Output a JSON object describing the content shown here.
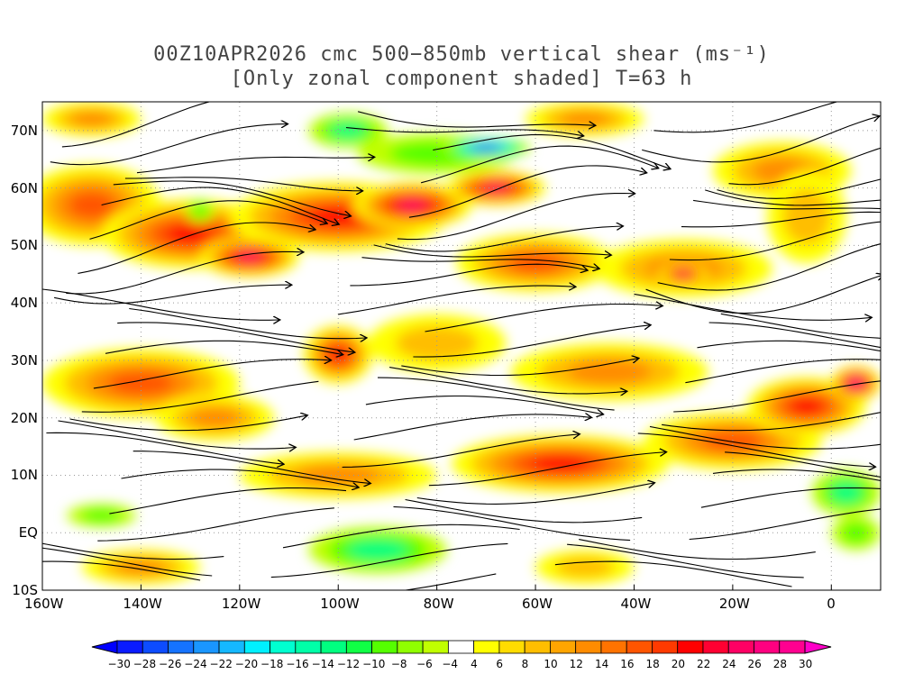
{
  "title": {
    "line1": "00Z10APR2026 cmc 500−850mb vertical shear (ms⁻¹)",
    "line2": "[Only zonal component shaded] T=63 h"
  },
  "axes": {
    "lon_labels": [
      {
        "lon": -160,
        "text": "160W"
      },
      {
        "lon": -140,
        "text": "140W"
      },
      {
        "lon": -120,
        "text": "120W"
      },
      {
        "lon": -100,
        "text": "100W"
      },
      {
        "lon": -80,
        "text": "80W"
      },
      {
        "lon": -60,
        "text": "60W"
      },
      {
        "lon": -40,
        "text": "40W"
      },
      {
        "lon": -20,
        "text": "20W"
      },
      {
        "lon": 0,
        "text": "0"
      }
    ],
    "lat_labels": [
      {
        "lat": 70,
        "text": "70N"
      },
      {
        "lat": 60,
        "text": "60N"
      },
      {
        "lat": 50,
        "text": "50N"
      },
      {
        "lat": 40,
        "text": "40N"
      },
      {
        "lat": 30,
        "text": "30N"
      },
      {
        "lat": 20,
        "text": "20N"
      },
      {
        "lat": 10,
        "text": "10N"
      },
      {
        "lat": 0,
        "text": "EQ"
      },
      {
        "lat": -10,
        "text": "10S"
      }
    ],
    "lon_range": [
      -160,
      10
    ],
    "lat_range": [
      -10,
      75
    ]
  },
  "colorbar": {
    "labels": [
      "−30",
      "−28",
      "−26",
      "−24",
      "−22",
      "−20",
      "−18",
      "−16",
      "−14",
      "−12",
      "−10",
      "−8",
      "−6",
      "−4",
      "4",
      "6",
      "8",
      "10",
      "12",
      "14",
      "16",
      "18",
      "20",
      "22",
      "24",
      "26",
      "28",
      "30"
    ],
    "colors": [
      "#0a1bff",
      "#0d4cff",
      "#1573ff",
      "#1a96ff",
      "#15b8ff",
      "#00f0ff",
      "#00ffd0",
      "#00ffa8",
      "#00ff80",
      "#10ff45",
      "#55ff00",
      "#90ff00",
      "#c0ff00",
      "#ffffff",
      "#ffff00",
      "#ffdc00",
      "#ffbe00",
      "#ffa500",
      "#ff8c00",
      "#ff7300",
      "#ff5500",
      "#ff3a00",
      "#ff0000",
      "#ff0032",
      "#ff0064",
      "#ff0080",
      "#ff0090"
    ],
    "under_color": "#0000ff",
    "over_color": "#ff00c8"
  },
  "shading": [
    {
      "lon": -150,
      "lat": 57,
      "rx": 14,
      "ry": 7,
      "v": 16
    },
    {
      "lon": -130,
      "lat": 52,
      "rx": 18,
      "ry": 6,
      "v": 20
    },
    {
      "lon": -118,
      "lat": 48,
      "rx": 10,
      "ry": 3.5,
      "v": 26
    },
    {
      "lon": -100,
      "lat": 55,
      "rx": 22,
      "ry": 6,
      "v": 22
    },
    {
      "lon": -85,
      "lat": 57,
      "rx": 12,
      "ry": 4,
      "v": 26
    },
    {
      "lon": -68,
      "lat": 60,
      "rx": 10,
      "ry": 3,
      "v": 26
    },
    {
      "lon": -60,
      "lat": 47,
      "rx": 16,
      "ry": 5,
      "v": 16
    },
    {
      "lon": -30,
      "lat": 46,
      "rx": 18,
      "ry": 5,
      "v": 14
    },
    {
      "lon": -30,
      "lat": 45,
      "rx": 5,
      "ry": 2,
      "v": 26
    },
    {
      "lon": -10,
      "lat": 63,
      "rx": 14,
      "ry": 5,
      "v": 14
    },
    {
      "lon": -5,
      "lat": 55,
      "rx": 8,
      "ry": 8,
      "v": 10
    },
    {
      "lon": -150,
      "lat": 72,
      "rx": 10,
      "ry": 3,
      "v": 14
    },
    {
      "lon": -50,
      "lat": 72,
      "rx": 12,
      "ry": 3,
      "v": 14
    },
    {
      "lon": -140,
      "lat": 26,
      "rx": 20,
      "ry": 6,
      "v": 18
    },
    {
      "lon": -125,
      "lat": 20,
      "rx": 12,
      "ry": 4,
      "v": 14
    },
    {
      "lon": -100,
      "lat": 31,
      "rx": 7,
      "ry": 5,
      "v": 22
    },
    {
      "lon": -80,
      "lat": 33,
      "rx": 14,
      "ry": 5,
      "v": 10
    },
    {
      "lon": -45,
      "lat": 28,
      "rx": 20,
      "ry": 5,
      "v": 12
    },
    {
      "lon": -55,
      "lat": 12,
      "rx": 22,
      "ry": 5,
      "v": 20
    },
    {
      "lon": -20,
      "lat": 16,
      "rx": 18,
      "ry": 5,
      "v": 16
    },
    {
      "lon": -5,
      "lat": 22,
      "rx": 12,
      "ry": 5,
      "v": 22
    },
    {
      "lon": 5,
      "lat": 26,
      "rx": 5,
      "ry": 3,
      "v": 28
    },
    {
      "lon": -100,
      "lat": 10,
      "rx": 20,
      "ry": 4,
      "v": 12
    },
    {
      "lon": -140,
      "lat": -6,
      "rx": 12,
      "ry": 3,
      "v": 12
    },
    {
      "lon": -50,
      "lat": -6,
      "rx": 10,
      "ry": 3,
      "v": 10
    },
    {
      "lon": -80,
      "lat": 66,
      "rx": 16,
      "ry": 3.5,
      "v": -10
    },
    {
      "lon": -98,
      "lat": 70,
      "rx": 8,
      "ry": 3,
      "v": -12
    },
    {
      "lon": -70,
      "lat": 67,
      "rx": 9,
      "ry": 1.8,
      "v": -28
    },
    {
      "lon": -128,
      "lat": 56,
      "rx": 3,
      "ry": 2,
      "v": -10
    },
    {
      "lon": -92,
      "lat": -3,
      "rx": 14,
      "ry": 4,
      "v": -12
    },
    {
      "lon": -148,
      "lat": 3,
      "rx": 7,
      "ry": 2,
      "v": -10
    },
    {
      "lon": 3,
      "lat": 7,
      "rx": 7,
      "ry": 4,
      "v": -12
    },
    {
      "lon": 5,
      "lat": 0,
      "rx": 5,
      "ry": 3,
      "v": -8
    }
  ]
}
